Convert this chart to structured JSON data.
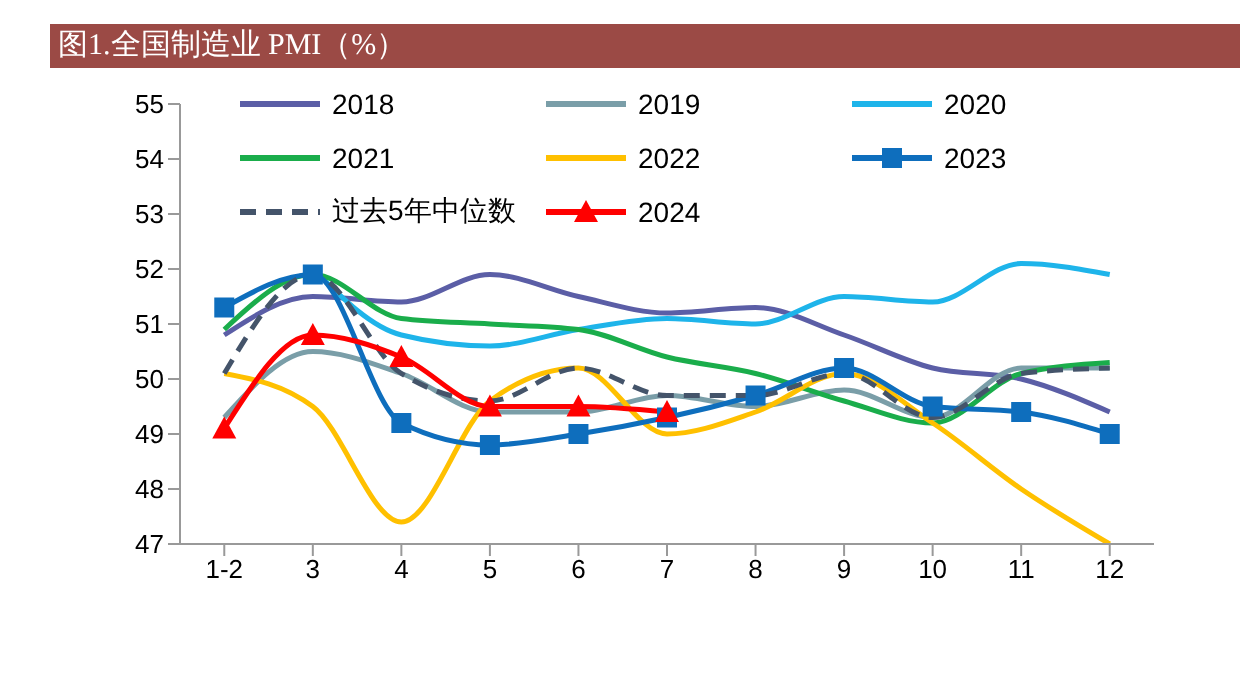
{
  "chart_data": {
    "type": "line",
    "title": "图1.全国制造业 PMI（%）",
    "categories": [
      "1-2",
      "3",
      "4",
      "5",
      "6",
      "7",
      "8",
      "9",
      "10",
      "11",
      "12"
    ],
    "series": [
      {
        "name": "2018",
        "color": "#5b5ea6",
        "values": [
          50.8,
          51.5,
          51.4,
          51.9,
          51.5,
          51.2,
          51.3,
          50.8,
          50.2,
          50.0,
          49.4
        ]
      },
      {
        "name": "2019",
        "color": "#7a9ea8",
        "values": [
          49.3,
          50.5,
          50.1,
          49.4,
          49.4,
          49.7,
          49.5,
          49.8,
          49.3,
          50.2,
          50.2
        ]
      },
      {
        "name": "2020",
        "color": "#1eb4ea",
        "values": [
          null,
          52.0,
          50.8,
          50.6,
          50.9,
          51.1,
          51.0,
          51.5,
          51.4,
          52.1,
          51.9
        ]
      },
      {
        "name": "2021",
        "color": "#1aad4b",
        "values": [
          50.9,
          51.9,
          51.1,
          51.0,
          50.9,
          50.4,
          50.1,
          49.6,
          49.2,
          50.1,
          50.3
        ]
      },
      {
        "name": "2022",
        "color": "#ffc000",
        "values": [
          50.1,
          49.5,
          47.4,
          49.6,
          50.2,
          49.0,
          49.4,
          50.1,
          49.2,
          48.0,
          47.0
        ]
      },
      {
        "name": "2023",
        "color": "#0e6ebd",
        "marker": "square",
        "values": [
          51.3,
          51.9,
          49.2,
          48.8,
          49.0,
          49.3,
          49.7,
          50.2,
          49.5,
          49.4,
          49.0
        ]
      },
      {
        "name": "过去5年中位数",
        "color": "#44546a",
        "line_style": "dashed",
        "values": [
          50.1,
          51.9,
          50.1,
          49.6,
          50.2,
          49.7,
          49.7,
          50.1,
          49.3,
          50.1,
          50.2
        ]
      },
      {
        "name": "2024",
        "color": "#ff0000",
        "marker": "triangle",
        "values": [
          49.1,
          50.8,
          50.4,
          49.5,
          49.5,
          49.4,
          null,
          null,
          null,
          null,
          null
        ]
      }
    ],
    "ylim": [
      47,
      55
    ],
    "yticks": [
      47,
      48,
      49,
      50,
      51,
      52,
      53,
      54,
      55
    ],
    "legend": "top",
    "marker": "none",
    "line_style": "solid"
  }
}
